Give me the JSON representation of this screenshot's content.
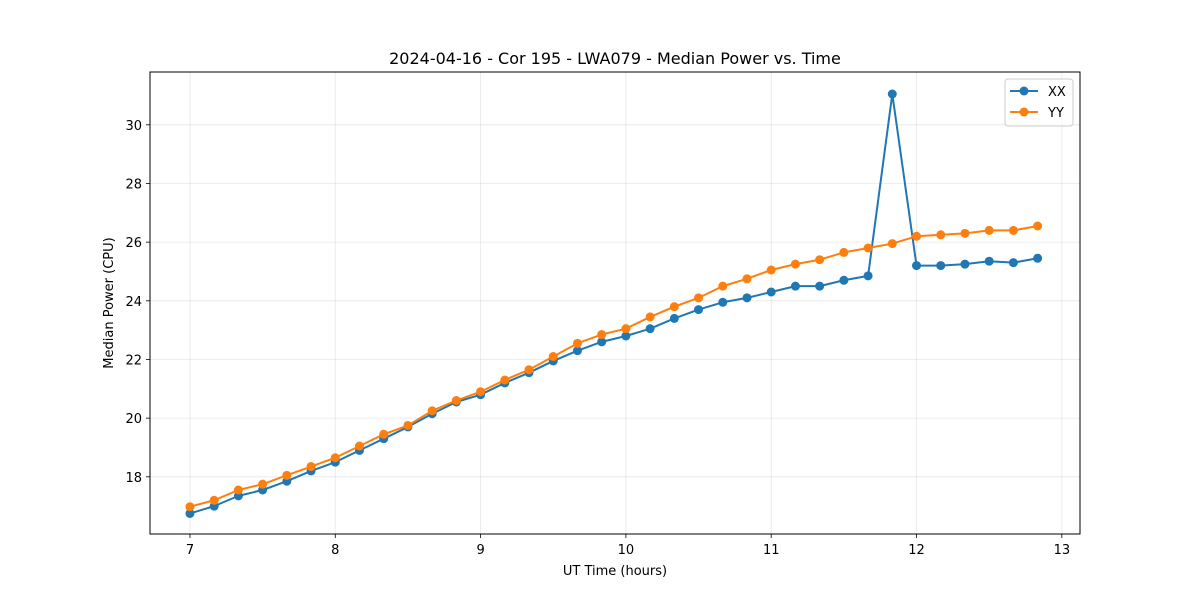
{
  "chart_data": {
    "type": "line",
    "title": "2024-04-16 - Cor 195 - LWA079 - Median Power vs. Time",
    "xlabel": "UT Time (hours)",
    "ylabel": "Median Power (CPU)",
    "xlim": [
      6.725,
      13.125
    ],
    "ylim": [
      16.05,
      31.8
    ],
    "xticks": [
      7,
      8,
      9,
      10,
      11,
      12,
      13
    ],
    "yticks": [
      18,
      20,
      22,
      24,
      26,
      28,
      30
    ],
    "grid": true,
    "legend_position": "top-right",
    "x": [
      7.0,
      7.1667,
      7.3333,
      7.5,
      7.6667,
      7.8333,
      8.0,
      8.1667,
      8.3333,
      8.5,
      8.6667,
      8.8333,
      9.0,
      9.1667,
      9.3333,
      9.5,
      9.6667,
      9.8333,
      10.0,
      10.1667,
      10.3333,
      10.5,
      10.6667,
      10.8333,
      11.0,
      11.1667,
      11.3333,
      11.5,
      11.6667,
      11.8333,
      12.0,
      12.1667,
      12.3333,
      12.5,
      12.6667,
      12.8333
    ],
    "series": [
      {
        "name": "XX",
        "color": "#1f77b4",
        "values": [
          16.75,
          17.0,
          17.35,
          17.55,
          17.85,
          18.2,
          18.5,
          18.9,
          19.3,
          19.7,
          20.15,
          20.55,
          20.8,
          21.2,
          21.55,
          21.95,
          22.3,
          22.6,
          22.8,
          23.05,
          23.4,
          23.7,
          23.95,
          24.1,
          24.3,
          24.5,
          24.5,
          24.7,
          24.85,
          31.05,
          25.2,
          25.2,
          25.25,
          25.35,
          25.3,
          25.45
        ]
      },
      {
        "name": "YY",
        "color": "#ff7f0e",
        "values": [
          16.98,
          17.2,
          17.55,
          17.75,
          18.05,
          18.35,
          18.65,
          19.05,
          19.45,
          19.75,
          20.25,
          20.6,
          20.9,
          21.3,
          21.65,
          22.1,
          22.55,
          22.85,
          23.05,
          23.45,
          23.8,
          24.1,
          24.5,
          24.75,
          25.05,
          25.25,
          25.4,
          25.65,
          25.8,
          25.95,
          26.2,
          26.25,
          26.3,
          26.4,
          26.4,
          26.55
        ]
      }
    ]
  }
}
